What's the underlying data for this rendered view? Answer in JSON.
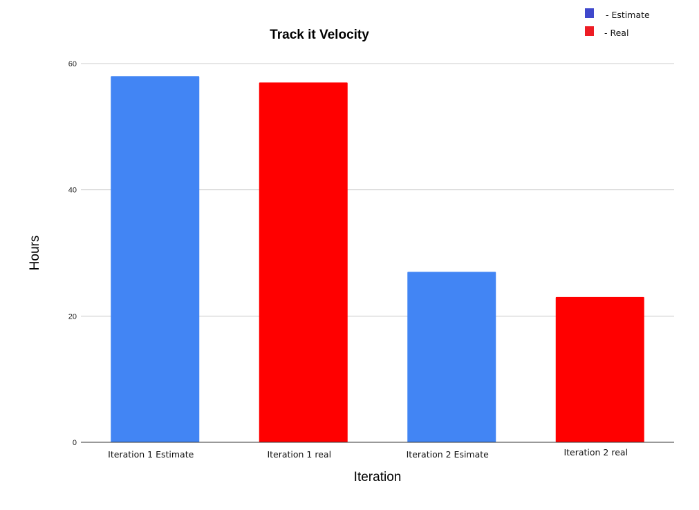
{
  "chart_data": {
    "type": "bar",
    "title": "Track it Velocity",
    "xlabel": "Iteration",
    "ylabel": "Hours",
    "categories": [
      "Iteration 1 Estimate",
      "Iteration 1 real",
      "Iteration 2 Esimate",
      "Iteration 2 real"
    ],
    "values": [
      58,
      57,
      27,
      23
    ],
    "bar_colors": [
      "#4285f4",
      "#ff0000",
      "#4285f4",
      "#ff0000"
    ],
    "ylim": [
      0,
      60
    ],
    "yticks": [
      0,
      20,
      40,
      60
    ],
    "grid": true,
    "legend": {
      "position": "top-right",
      "entries": [
        {
          "label": "- Estimate",
          "color": "#3f48cc"
        },
        {
          "label": "- Real",
          "color": "#ed1c24"
        }
      ]
    }
  }
}
